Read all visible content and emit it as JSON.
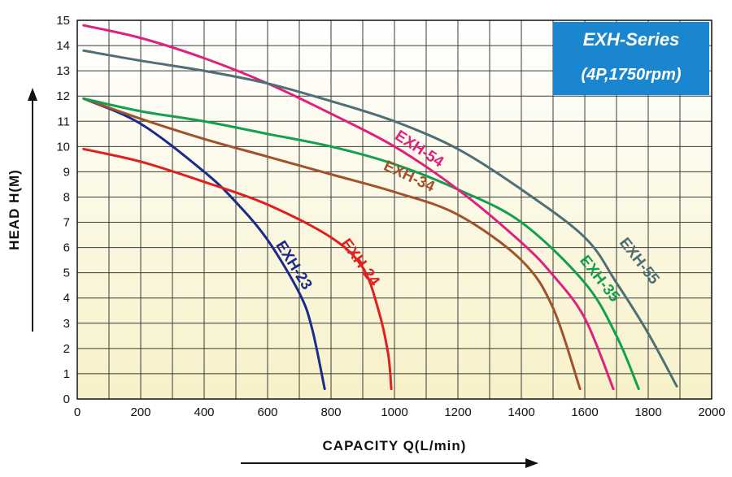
{
  "chart_data": {
    "type": "line",
    "xlabel": "CAPACITY  Q(L/min)",
    "ylabel": "HEAD  H(M)",
    "xlim": [
      0,
      2000
    ],
    "ylim": [
      0,
      15
    ],
    "x_ticks": [
      "0",
      "200",
      "400",
      "600",
      "800",
      "1000",
      "1200",
      "1400",
      "1600",
      "1800",
      "2000"
    ],
    "y_ticks": [
      "0",
      "1",
      "2",
      "3",
      "4",
      "5",
      "6",
      "7",
      "8",
      "9",
      "10",
      "11",
      "12",
      "13",
      "14",
      "15"
    ],
    "grid": true,
    "background": "light yellow gradient",
    "badge": {
      "line1": "EXH-Series",
      "line2": "(4P,1750rpm)",
      "color": "#1a86cf"
    },
    "series": [
      {
        "name": "EXH-23",
        "color": "#1c2a8c",
        "points": [
          [
            20,
            11.9
          ],
          [
            200,
            10.9
          ],
          [
            400,
            9.0
          ],
          [
            500,
            7.8
          ],
          [
            600,
            6.3
          ],
          [
            700,
            4.2
          ],
          [
            740,
            2.8
          ],
          [
            780,
            0.4
          ]
        ]
      },
      {
        "name": "EXH-24",
        "color": "#e02020",
        "points": [
          [
            20,
            9.9
          ],
          [
            200,
            9.4
          ],
          [
            400,
            8.6
          ],
          [
            600,
            7.7
          ],
          [
            800,
            6.4
          ],
          [
            900,
            5.2
          ],
          [
            950,
            3.5
          ],
          [
            980,
            1.8
          ],
          [
            990,
            0.4
          ]
        ]
      },
      {
        "name": "EXH-34",
        "color": "#a0522d",
        "points": [
          [
            20,
            11.9
          ],
          [
            200,
            11.1
          ],
          [
            400,
            10.3
          ],
          [
            600,
            9.6
          ],
          [
            800,
            8.9
          ],
          [
            1000,
            8.2
          ],
          [
            1200,
            7.3
          ],
          [
            1400,
            5.5
          ],
          [
            1500,
            3.6
          ],
          [
            1585,
            0.4
          ]
        ]
      },
      {
        "name": "EXH-35",
        "color": "#12a050",
        "points": [
          [
            20,
            11.9
          ],
          [
            200,
            11.4
          ],
          [
            400,
            11.0
          ],
          [
            600,
            10.5
          ],
          [
            800,
            10.0
          ],
          [
            1000,
            9.3
          ],
          [
            1200,
            8.3
          ],
          [
            1400,
            7.0
          ],
          [
            1600,
            4.6
          ],
          [
            1700,
            2.5
          ],
          [
            1770,
            0.4
          ]
        ]
      },
      {
        "name": "EXH-54",
        "color": "#e0207f",
        "points": [
          [
            20,
            14.8
          ],
          [
            200,
            14.3
          ],
          [
            400,
            13.5
          ],
          [
            600,
            12.5
          ],
          [
            800,
            11.3
          ],
          [
            1000,
            10.0
          ],
          [
            1200,
            8.3
          ],
          [
            1400,
            6.2
          ],
          [
            1500,
            4.9
          ],
          [
            1600,
            3.2
          ],
          [
            1690,
            0.4
          ]
        ]
      },
      {
        "name": "EXH-55",
        "color": "#4e6f74",
        "points": [
          [
            20,
            13.8
          ],
          [
            200,
            13.4
          ],
          [
            400,
            13.0
          ],
          [
            600,
            12.5
          ],
          [
            800,
            11.8
          ],
          [
            1000,
            11.0
          ],
          [
            1200,
            9.9
          ],
          [
            1400,
            8.3
          ],
          [
            1600,
            6.4
          ],
          [
            1700,
            4.6
          ],
          [
            1800,
            2.6
          ],
          [
            1890,
            0.5
          ]
        ]
      }
    ]
  }
}
